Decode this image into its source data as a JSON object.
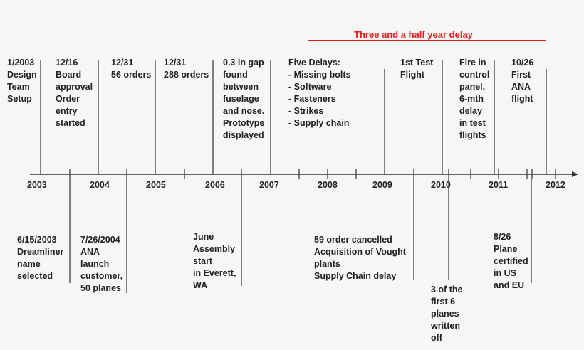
{
  "delay_banner": {
    "text": "Three and a half year delay",
    "color": "#e41c1c"
  },
  "years": [
    "2003",
    "2004",
    "2005",
    "2006",
    "2007",
    "2008",
    "2009",
    "2010",
    "2011",
    "2012"
  ],
  "events_above": [
    {
      "id": "design-team",
      "text": "1/2003\nDesign\nTeam\nSetup"
    },
    {
      "id": "board-approval",
      "text": "12/16\nBoard\napproval\nOrder\nentry\nstarted"
    },
    {
      "id": "56-orders",
      "text": "12/31\n56 orders"
    },
    {
      "id": "288-orders",
      "text": "12/31\n288 orders"
    },
    {
      "id": "gap-fuselage",
      "text": "0.3 in gap\nfound\nbetween\nfuselage\nand nose.\nPrototype\ndisplayed"
    },
    {
      "id": "five-delays",
      "text": "Five Delays:\n- Missing bolts\n- Software\n- Fasteners\n- Strikes\n- Supply chain"
    },
    {
      "id": "first-test-flight",
      "text": "1st Test\nFlight"
    },
    {
      "id": "fire-control-panel",
      "text": "Fire in\ncontrol\npanel,\n6-mth\ndelay\nin test\nflights"
    },
    {
      "id": "first-ana-flight",
      "text": "10/26\nFirst\nANA\nflight"
    }
  ],
  "events_below": [
    {
      "id": "dreamliner-name",
      "text": "6/15/2003\nDreamliner\nname\nselected"
    },
    {
      "id": "ana-launch",
      "text": "7/26/2004\nANA\nlaunch\ncustomer,\n50 planes"
    },
    {
      "id": "assembly-start",
      "text": "June\nAssembly\nstart\nin Everett,\nWA"
    },
    {
      "id": "order-cancelled",
      "text": "59 order cancelled\nAcquisition of Vought\nplants\nSupply Chain delay"
    },
    {
      "id": "planes-written-off",
      "text": "3 of the\nfirst 6\nplanes\nwritten\noff"
    },
    {
      "id": "plane-certified",
      "text": "8/26\nPlane\ncertified\nin US\nand EU"
    }
  ]
}
